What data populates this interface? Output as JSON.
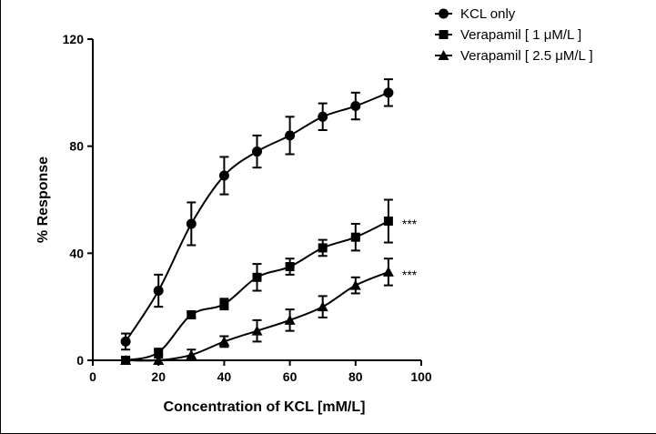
{
  "chart_data": {
    "type": "line",
    "xlabel": "Concentration of KCL [mM/L]",
    "ylabel": "% Response",
    "xlim": [
      0,
      100
    ],
    "ylim": [
      0,
      120
    ],
    "xticks": [
      0,
      20,
      40,
      60,
      80,
      100
    ],
    "yticks": [
      0,
      40,
      80,
      120
    ],
    "grid": false,
    "legend_position": "top-right",
    "x": [
      10,
      20,
      30,
      40,
      50,
      60,
      70,
      80,
      90
    ],
    "series": [
      {
        "name": "KCL only",
        "marker": "circle",
        "values": [
          7,
          26,
          51,
          69,
          78,
          84,
          91,
          95,
          100
        ],
        "errors": [
          3,
          6,
          8,
          7,
          6,
          7,
          5,
          5,
          5
        ],
        "annotation": ""
      },
      {
        "name": "Verapamil [ 1 μM/L ]",
        "marker": "square",
        "values": [
          0,
          3,
          17,
          21,
          31,
          35,
          42,
          46,
          52
        ],
        "errors": [
          1,
          1,
          1,
          2,
          5,
          3,
          3,
          5,
          8
        ],
        "annotation": "***"
      },
      {
        "name": "Verapamil [ 2.5 μM/L ]",
        "marker": "triangle",
        "values": [
          0,
          0,
          2,
          7,
          11,
          15,
          20,
          28,
          33
        ],
        "errors": [
          0,
          1,
          2,
          2,
          4,
          4,
          4,
          3,
          5
        ],
        "annotation": "***"
      }
    ],
    "color": "#000000"
  }
}
